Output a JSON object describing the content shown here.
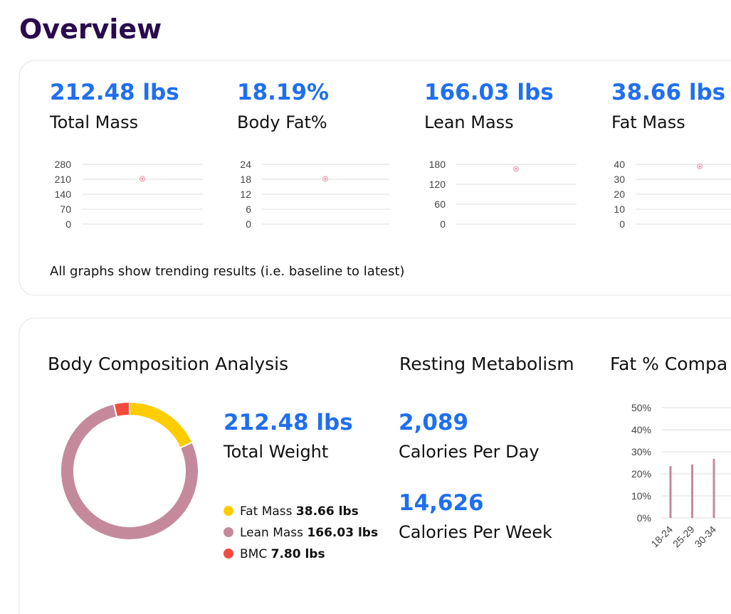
{
  "title": "Overview",
  "metrics": [
    {
      "value": "212.48 lbs",
      "label": "Total Mass"
    },
    {
      "value": "18.19%",
      "label": "Body Fat%"
    },
    {
      "value": "166.03 lbs",
      "label": "Lean Mass"
    },
    {
      "value": "38.66 lbs",
      "label": "Fat Mass"
    }
  ],
  "note": "All graphs show trending results (i.e. baseline to latest)",
  "composition": {
    "title": "Body Composition Analysis",
    "value": "212.48 lbs",
    "label": "Total Weight"
  },
  "metabolism": {
    "title": "Resting Metabolism",
    "items": [
      {
        "value": "2,089",
        "label": "Calories Per Day"
      },
      {
        "value": "14,626",
        "label": "Calories Per Week"
      }
    ]
  },
  "chart_data": [
    {
      "type": "scatter",
      "values": [
        212.48
      ],
      "color": "#e89aac",
      "ylim": [
        0,
        280
      ],
      "yticks": [
        0,
        70,
        140,
        210,
        280
      ],
      "grid": true
    },
    {
      "type": "scatter",
      "values": [
        18.19
      ],
      "color": "#e89aac",
      "ylim": [
        0,
        24
      ],
      "yticks": [
        0,
        6,
        12,
        18,
        24
      ],
      "grid": true
    },
    {
      "type": "scatter",
      "values": [
        166.03
      ],
      "color": "#e89aac",
      "ylim": [
        0,
        180
      ],
      "yticks": [
        0,
        60,
        120,
        180
      ],
      "grid": true
    },
    {
      "type": "scatter",
      "values": [
        38.66
      ],
      "color": "#e89aac",
      "ylim": [
        0,
        40
      ],
      "yticks": [
        0,
        10,
        20,
        30,
        40
      ],
      "grid": true
    },
    {
      "type": "donut",
      "categories": [
        "Fat Mass",
        "Lean Mass",
        "BMC"
      ],
      "values": [
        38.66,
        166.03,
        7.8
      ],
      "value_labels": [
        "38.66 lbs",
        "166.03 lbs",
        "7.80 lbs"
      ],
      "colors": [
        "#ffcc00",
        "#c48a9b",
        "#f44b3f"
      ]
    },
    {
      "type": "bar",
      "title": "Fat % Compa",
      "categories": [
        "18-24",
        "25-29",
        "30-34"
      ],
      "values": [
        23.5,
        24.2,
        26.8
      ],
      "color": "#c48a9b",
      "ylim": [
        0,
        50
      ],
      "yticks": [
        {
          "value": 0,
          "label": "0%"
        },
        {
          "value": 10,
          "label": "10%"
        },
        {
          "value": 20,
          "label": "20%"
        },
        {
          "value": 30,
          "label": "30%"
        },
        {
          "value": 40,
          "label": "40%"
        },
        {
          "value": 50,
          "label": "50%"
        }
      ],
      "grid": true
    }
  ]
}
